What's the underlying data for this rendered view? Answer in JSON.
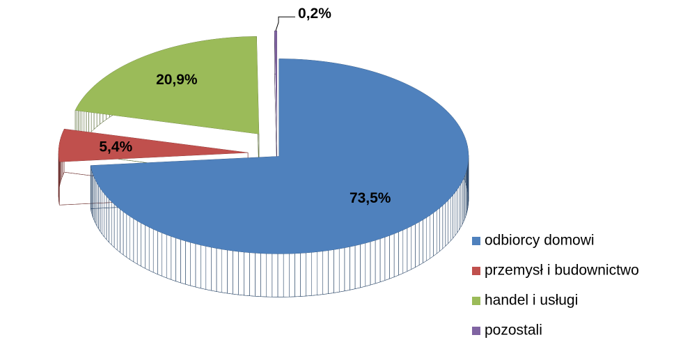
{
  "chart_data": {
    "type": "pie",
    "categories": [
      "odbiorcy domowi",
      "przemysł i budownictwo",
      "handel i usługi",
      "pozostali"
    ],
    "values": [
      73.5,
      5.4,
      20.9,
      0.2
    ],
    "value_labels": [
      "73,5%",
      "5,4%",
      "20,9%",
      "0,2%"
    ],
    "colors": [
      "#4f81bd",
      "#c0504d",
      "#9bbb59",
      "#8064a2"
    ],
    "legend": "right"
  }
}
